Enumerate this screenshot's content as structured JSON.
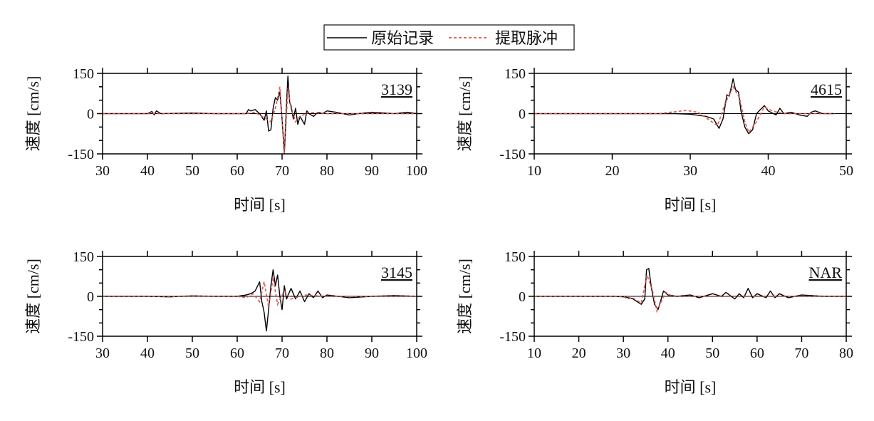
{
  "legend": {
    "original_label": "原始记录",
    "pulse_label": "提取脉冲",
    "original_color": "#000000",
    "pulse_color": "#d9534f"
  },
  "chart_data": [
    {
      "type": "line",
      "station": "3139",
      "xlabel": "时间 [s]",
      "ylabel": "速度 [cm/s]",
      "xlim": [
        30,
        100
      ],
      "ylim": [
        -150,
        150
      ],
      "xticks": [
        30,
        40,
        50,
        60,
        70,
        80,
        90,
        100
      ],
      "yticks": [
        -150,
        0,
        150
      ],
      "series": [
        {
          "name": "原始记录",
          "points": [
            [
              30,
              0
            ],
            [
              40,
              0
            ],
            [
              41,
              8
            ],
            [
              41.5,
              -5
            ],
            [
              42,
              10
            ],
            [
              43,
              0
            ],
            [
              50,
              2
            ],
            [
              55,
              0
            ],
            [
              60,
              0
            ],
            [
              62,
              0
            ],
            [
              62.5,
              15
            ],
            [
              63,
              10
            ],
            [
              64,
              15
            ],
            [
              65,
              0
            ],
            [
              66,
              -25
            ],
            [
              66.5,
              10
            ],
            [
              67,
              -65
            ],
            [
              67.5,
              -60
            ],
            [
              68,
              20
            ],
            [
              68.5,
              60
            ],
            [
              69,
              50
            ],
            [
              69.5,
              80
            ],
            [
              70,
              -20
            ],
            [
              70.5,
              -150
            ],
            [
              71,
              40
            ],
            [
              71.3,
              140
            ],
            [
              71.7,
              40
            ],
            [
              72,
              30
            ],
            [
              72.5,
              -20
            ],
            [
              73,
              20
            ],
            [
              73.5,
              -40
            ],
            [
              74,
              -10
            ],
            [
              75,
              -40
            ],
            [
              75.5,
              10
            ],
            [
              76,
              0
            ],
            [
              77,
              -10
            ],
            [
              78,
              5
            ],
            [
              79,
              0
            ],
            [
              80,
              10
            ],
            [
              82,
              5
            ],
            [
              85,
              -5
            ],
            [
              87,
              0
            ],
            [
              90,
              5
            ],
            [
              95,
              0
            ],
            [
              98,
              5
            ],
            [
              100,
              0
            ]
          ]
        },
        {
          "name": "提取脉冲",
          "points": [
            [
              30,
              0
            ],
            [
              62,
              0
            ],
            [
              64,
              5
            ],
            [
              66,
              -15
            ],
            [
              67.5,
              -30
            ],
            [
              68.5,
              20
            ],
            [
              69.5,
              100
            ],
            [
              70.5,
              -150
            ],
            [
              71.3,
              95
            ],
            [
              72,
              20
            ],
            [
              73,
              -30
            ],
            [
              74,
              -10
            ],
            [
              76,
              5
            ],
            [
              80,
              0
            ],
            [
              100,
              0
            ]
          ]
        }
      ]
    },
    {
      "type": "line",
      "station": "4615",
      "xlabel": "时间 [s]",
      "ylabel": "速度 [cm/s]",
      "xlim": [
        10,
        50
      ],
      "ylim": [
        -150,
        150
      ],
      "xticks": [
        10,
        20,
        30,
        40,
        50
      ],
      "yticks": [
        -150,
        0,
        150
      ],
      "series": [
        {
          "name": "原始记录",
          "points": [
            [
              10,
              0
            ],
            [
              28,
              0
            ],
            [
              30,
              -2
            ],
            [
              32,
              -10
            ],
            [
              33,
              -20
            ],
            [
              33.7,
              -55
            ],
            [
              34.2,
              -20
            ],
            [
              34.7,
              70
            ],
            [
              35,
              65
            ],
            [
              35.5,
              130
            ],
            [
              35.8,
              90
            ],
            [
              36.2,
              80
            ],
            [
              36.5,
              10
            ],
            [
              37,
              -50
            ],
            [
              37.5,
              -75
            ],
            [
              38,
              -60
            ],
            [
              38.5,
              0
            ],
            [
              39,
              15
            ],
            [
              39.5,
              30
            ],
            [
              40,
              10
            ],
            [
              41,
              -5
            ],
            [
              41.5,
              20
            ],
            [
              42,
              0
            ],
            [
              43,
              5
            ],
            [
              44,
              -5
            ],
            [
              45,
              -10
            ],
            [
              45.5,
              5
            ],
            [
              46,
              10
            ],
            [
              47,
              0
            ],
            [
              48.5,
              0
            ]
          ]
        },
        {
          "name": "提取脉冲",
          "points": [
            [
              10,
              0
            ],
            [
              26,
              0
            ],
            [
              29.5,
              12
            ],
            [
              31,
              5
            ],
            [
              32,
              -15
            ],
            [
              33.5,
              -45
            ],
            [
              34.5,
              40
            ],
            [
              35.5,
              100
            ],
            [
              36.3,
              60
            ],
            [
              37,
              -30
            ],
            [
              37.5,
              -70
            ],
            [
              38.5,
              -30
            ],
            [
              39.5,
              25
            ],
            [
              40.5,
              10
            ],
            [
              42,
              0
            ],
            [
              48.5,
              0
            ]
          ]
        }
      ]
    },
    {
      "type": "line",
      "station": "3145",
      "xlabel": "时间 [s]",
      "ylabel": "速度 [cm/s]",
      "xlim": [
        30,
        100
      ],
      "ylim": [
        -150,
        150
      ],
      "xticks": [
        30,
        40,
        50,
        60,
        70,
        80,
        90,
        100
      ],
      "yticks": [
        -150,
        0,
        150
      ],
      "series": [
        {
          "name": "原始记录",
          "points": [
            [
              30,
              0
            ],
            [
              40,
              0
            ],
            [
              45,
              -2
            ],
            [
              50,
              2
            ],
            [
              55,
              0
            ],
            [
              60,
              0
            ],
            [
              62,
              5
            ],
            [
              63,
              10
            ],
            [
              64,
              20
            ],
            [
              65,
              55
            ],
            [
              65.5,
              -20
            ],
            [
              66,
              -60
            ],
            [
              66.5,
              -130
            ],
            [
              67,
              -50
            ],
            [
              67.5,
              40
            ],
            [
              68,
              100
            ],
            [
              68.5,
              40
            ],
            [
              69,
              80
            ],
            [
              69.5,
              0
            ],
            [
              70,
              -50
            ],
            [
              70.5,
              40
            ],
            [
              71,
              -10
            ],
            [
              72,
              30
            ],
            [
              73,
              -10
            ],
            [
              74,
              20
            ],
            [
              75,
              -20
            ],
            [
              76,
              10
            ],
            [
              77,
              -5
            ],
            [
              78,
              20
            ],
            [
              79,
              -5
            ],
            [
              80,
              5
            ],
            [
              85,
              -5
            ],
            [
              90,
              0
            ],
            [
              95,
              3
            ],
            [
              100,
              0
            ]
          ]
        },
        {
          "name": "提取脉冲",
          "points": [
            [
              30,
              0
            ],
            [
              60,
              0
            ],
            [
              62,
              -5
            ],
            [
              63.5,
              10
            ],
            [
              65,
              -20
            ],
            [
              66,
              55
            ],
            [
              67,
              -40
            ],
            [
              68,
              70
            ],
            [
              69,
              -30
            ],
            [
              70.5,
              20
            ],
            [
              72,
              -10
            ],
            [
              75,
              5
            ],
            [
              80,
              0
            ],
            [
              100,
              0
            ]
          ]
        }
      ]
    },
    {
      "type": "line",
      "station": "NAR",
      "xlabel": "时间 [s]",
      "ylabel": "速度 [cm/s]",
      "xlim": [
        10,
        80
      ],
      "ylim": [
        -150,
        150
      ],
      "xticks": [
        10,
        20,
        30,
        40,
        50,
        60,
        70,
        80
      ],
      "yticks": [
        -150,
        0,
        150
      ],
      "series": [
        {
          "name": "原始记录",
          "points": [
            [
              10,
              0
            ],
            [
              28,
              0
            ],
            [
              30,
              -2
            ],
            [
              32,
              -8
            ],
            [
              34,
              -30
            ],
            [
              34.8,
              -10
            ],
            [
              35.2,
              100
            ],
            [
              35.7,
              105
            ],
            [
              36.3,
              30
            ],
            [
              37,
              -30
            ],
            [
              37.8,
              -50
            ],
            [
              38.5,
              -10
            ],
            [
              39,
              20
            ],
            [
              40,
              5
            ],
            [
              42,
              0
            ],
            [
              45,
              5
            ],
            [
              47,
              -5
            ],
            [
              50,
              10
            ],
            [
              52,
              0
            ],
            [
              53,
              15
            ],
            [
              55,
              -10
            ],
            [
              56,
              10
            ],
            [
              57,
              -5
            ],
            [
              58,
              30
            ],
            [
              59,
              -5
            ],
            [
              60,
              10
            ],
            [
              62,
              -5
            ],
            [
              63,
              20
            ],
            [
              64,
              -5
            ],
            [
              65,
              10
            ],
            [
              67,
              -5
            ],
            [
              70,
              5
            ],
            [
              75,
              0
            ],
            [
              80,
              0
            ]
          ]
        },
        {
          "name": "提取脉冲",
          "points": [
            [
              10,
              0
            ],
            [
              30,
              0
            ],
            [
              31,
              -10
            ],
            [
              32,
              -5
            ],
            [
              34,
              -25
            ],
            [
              35.3,
              80
            ],
            [
              36.5,
              25
            ],
            [
              37.5,
              -55
            ],
            [
              38.5,
              -20
            ],
            [
              39.5,
              15
            ],
            [
              41,
              0
            ],
            [
              80,
              0
            ]
          ]
        }
      ]
    }
  ]
}
